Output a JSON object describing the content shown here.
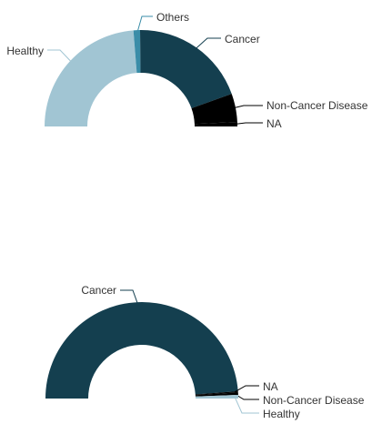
{
  "chart_data": [
    {
      "type": "pie",
      "style": "semi-donut",
      "title": "",
      "categories": [
        "Others",
        "Cancer",
        "Non-Cancer Disease",
        "NA",
        "Healthy"
      ],
      "values": [
        2.2,
        39.3,
        9.5,
        1.5,
        47.5
      ],
      "unit": "percent",
      "colors": [
        "#3a8da8",
        "#143f4f",
        "#000000",
        "#000000",
        "#a1c5d3"
      ],
      "labels": [
        "Others",
        "Cancer",
        "Non-Cancer Disease",
        "NA",
        "Healthy"
      ]
    },
    {
      "type": "pie",
      "style": "semi-donut",
      "title": "",
      "categories": [
        "Cancer",
        "NA",
        "Non-Cancer Disease",
        "Healthy"
      ],
      "values": [
        97.6,
        0.4,
        0.8,
        1.2
      ],
      "unit": "percent",
      "colors": [
        "#143f4f",
        "#000000",
        "#000000",
        "#a1c5d3"
      ],
      "labels": [
        "Cancer",
        "NA",
        "Non-Cancer Disease",
        "Healthy"
      ]
    }
  ]
}
